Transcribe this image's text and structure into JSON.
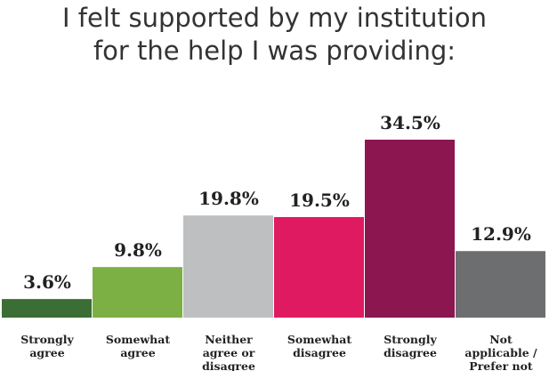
{
  "chart_data": {
    "type": "bar",
    "title": "I felt supported by my institution for the help I was providing:",
    "categories": [
      "Strongly agree",
      "Somewhat agree",
      "Neither agree or disagree",
      "Somewhat disagree",
      "Strongly disagree",
      "Not applicable / Prefer not to say"
    ],
    "values": [
      3.6,
      9.8,
      19.8,
      19.5,
      34.5,
      12.9
    ],
    "value_labels": [
      "3.6%",
      "9.8%",
      "19.8%",
      "19.5%",
      "34.5%",
      "12.9%"
    ],
    "colors": [
      "#3b6e35",
      "#7cb045",
      "#bdbfc1",
      "#e01a60",
      "#8b1650",
      "#6c6e70"
    ]
  }
}
